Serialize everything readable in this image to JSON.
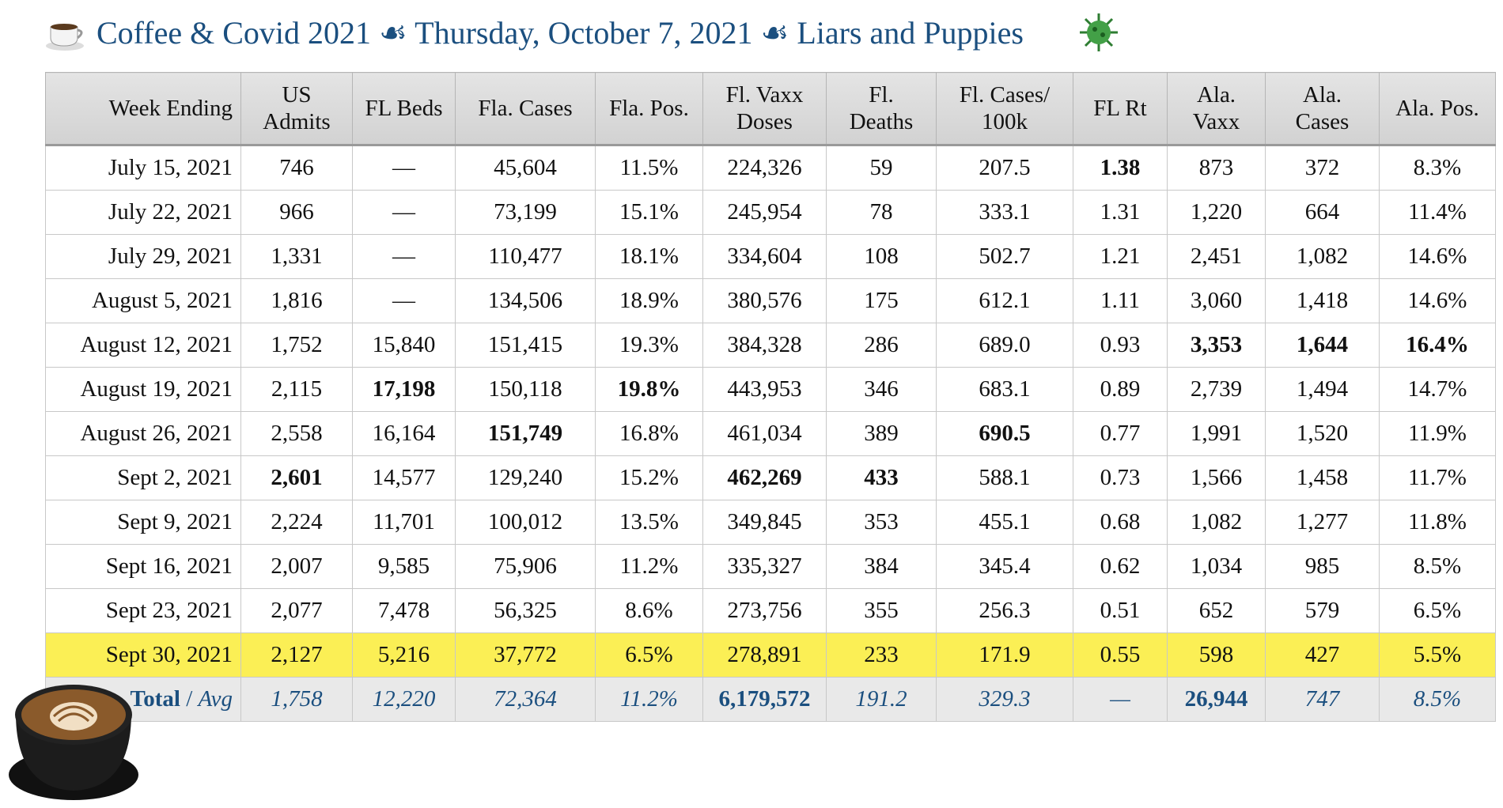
{
  "header": {
    "title": "Coffee & Covid 2021 ☙ Thursday, October 7, 2021 ☙ Liars and Puppies"
  },
  "table": {
    "columns": [
      [
        "Week Ending"
      ],
      [
        "US",
        "Admits"
      ],
      [
        "FL Beds"
      ],
      [
        "Fla. Cases"
      ],
      [
        "Fla. Pos."
      ],
      [
        "Fl. Vaxx",
        "Doses"
      ],
      [
        "Fl.",
        "Deaths"
      ],
      [
        "Fl. Cases/",
        "100k"
      ],
      [
        "FL Rt"
      ],
      [
        "Ala.",
        "Vaxx"
      ],
      [
        "Ala.",
        "Cases"
      ],
      [
        "Ala. Pos."
      ]
    ],
    "rows": [
      [
        "July 15, 2021",
        "746",
        "—",
        "45,604",
        "11.5%",
        "224,326",
        "59",
        "207.5",
        "1.38",
        "873",
        "372",
        "8.3%"
      ],
      [
        "July 22, 2021",
        "966",
        "—",
        "73,199",
        "15.1%",
        "245,954",
        "78",
        "333.1",
        "1.31",
        "1,220",
        "664",
        "11.4%"
      ],
      [
        "July 29, 2021",
        "1,331",
        "—",
        "110,477",
        "18.1%",
        "334,604",
        "108",
        "502.7",
        "1.21",
        "2,451",
        "1,082",
        "14.6%"
      ],
      [
        "August 5, 2021",
        "1,816",
        "—",
        "134,506",
        "18.9%",
        "380,576",
        "175",
        "612.1",
        "1.11",
        "3,060",
        "1,418",
        "14.6%"
      ],
      [
        "August 12, 2021",
        "1,752",
        "15,840",
        "151,415",
        "19.3%",
        "384,328",
        "286",
        "689.0",
        "0.93",
        "3,353",
        "1,644",
        "16.4%"
      ],
      [
        "August 19, 2021",
        "2,115",
        "17,198",
        "150,118",
        "19.8%",
        "443,953",
        "346",
        "683.1",
        "0.89",
        "2,739",
        "1,494",
        "14.7%"
      ],
      [
        "August 26, 2021",
        "2,558",
        "16,164",
        "151,749",
        "16.8%",
        "461,034",
        "389",
        "690.5",
        "0.77",
        "1,991",
        "1,520",
        "11.9%"
      ],
      [
        "Sept 2, 2021",
        "2,601",
        "14,577",
        "129,240",
        "15.2%",
        "462,269",
        "433",
        "588.1",
        "0.73",
        "1,566",
        "1,458",
        "11.7%"
      ],
      [
        "Sept 9, 2021",
        "2,224",
        "11,701",
        "100,012",
        "13.5%",
        "349,845",
        "353",
        "455.1",
        "0.68",
        "1,082",
        "1,277",
        "11.8%"
      ],
      [
        "Sept 16, 2021",
        "2,007",
        "9,585",
        "75,906",
        "11.2%",
        "335,327",
        "384",
        "345.4",
        "0.62",
        "1,034",
        "985",
        "8.5%"
      ],
      [
        "Sept 23, 2021",
        "2,077",
        "7,478",
        "56,325",
        "8.6%",
        "273,756",
        "355",
        "256.3",
        "0.51",
        "652",
        "579",
        "6.5%"
      ],
      [
        "Sept 30, 2021",
        "2,127",
        "5,216",
        "37,772",
        "6.5%",
        "278,891",
        "233",
        "171.9",
        "0.55",
        "598",
        "427",
        "5.5%"
      ]
    ],
    "bold_cells": [
      [
        0,
        8
      ],
      [
        4,
        9
      ],
      [
        4,
        10
      ],
      [
        4,
        11
      ],
      [
        5,
        2
      ],
      [
        5,
        4
      ],
      [
        6,
        3
      ],
      [
        6,
        7
      ],
      [
        7,
        1
      ],
      [
        7,
        5
      ],
      [
        7,
        6
      ]
    ],
    "highlight_row": 11,
    "total_row": {
      "label": [
        "Total",
        "/",
        "Avg"
      ],
      "cells": [
        "1,758",
        "12,220",
        "72,364",
        "11.2%",
        "6,179,572",
        "191.2",
        "329.3",
        "—",
        "26,944",
        "747",
        "8.5%"
      ],
      "bold": [
        4,
        8
      ]
    }
  }
}
